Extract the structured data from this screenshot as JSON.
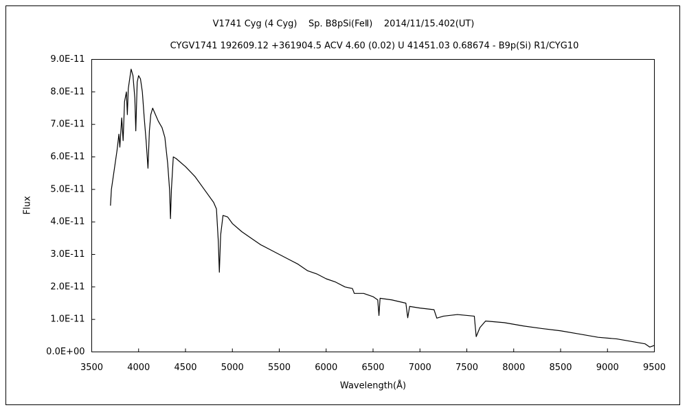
{
  "chart_data": {
    "type": "line",
    "title": "V1741 Cyg (4 Cyg)    Sp. B8pSi(FeⅡ)    2014/11/15.402(UT)",
    "subtitle": "CYGV1741 192609.12 +361904.5 ACV 4.60 (0.02) U 41451.03 0.68674 - B9p(Si) R1/CYG10",
    "x_label": "Wavelength(Å)",
    "y_label": "Flux",
    "color": "#000000",
    "x": [
      3700,
      3710,
      3730,
      3750,
      3770,
      3790,
      3800,
      3820,
      3835,
      3850,
      3870,
      3880,
      3890,
      3900,
      3920,
      3940,
      3960,
      3970,
      3985,
      4000,
      4020,
      4040,
      4060,
      4080,
      4100,
      4115,
      4130,
      4150,
      4180,
      4210,
      4250,
      4280,
      4310,
      4330,
      4340,
      4350,
      4370,
      4400,
      4500,
      4600,
      4700,
      4800,
      4830,
      4850,
      4861,
      4875,
      4900,
      4950,
      5000,
      5100,
      5200,
      5300,
      5400,
      5500,
      5600,
      5700,
      5800,
      5900,
      6000,
      6100,
      6200,
      6280,
      6300,
      6400,
      6500,
      6550,
      6563,
      6575,
      6700,
      6850,
      6870,
      6890,
      7000,
      7150,
      7180,
      7250,
      7400,
      7580,
      7600,
      7640,
      7700,
      7900,
      8100,
      8300,
      8500,
      8700,
      8900,
      9100,
      9300,
      9400,
      9450,
      9500
    ],
    "values": [
      4.5e-11,
      5e-11,
      5.4e-11,
      5.8e-11,
      6.2e-11,
      6.7e-11,
      6.3e-11,
      7.2e-11,
      6.5e-11,
      7.7e-11,
      8e-11,
      7.3e-11,
      8.1e-11,
      8.3e-11,
      8.7e-11,
      8.5e-11,
      7.8e-11,
      6.8e-11,
      8.3e-11,
      8.5e-11,
      8.4e-11,
      8e-11,
      7.2e-11,
      6.5e-11,
      5.65e-11,
      6.8e-11,
      7.3e-11,
      7.5e-11,
      7.3e-11,
      7.1e-11,
      6.9e-11,
      6.6e-11,
      5.8e-11,
      5e-11,
      4.1e-11,
      5e-11,
      6e-11,
      5.95e-11,
      5.7e-11,
      5.4e-11,
      5e-11,
      4.6e-11,
      4.4e-11,
      3.4e-11,
      2.45e-11,
      3.6e-11,
      4.2e-11,
      4.15e-11,
      3.95e-11,
      3.7e-11,
      3.5e-11,
      3.3e-11,
      3.15e-11,
      3e-11,
      2.85e-11,
      2.7e-11,
      2.5e-11,
      2.4e-11,
      2.25e-11,
      2.15e-11,
      2e-11,
      1.95e-11,
      1.8e-11,
      1.8e-11,
      1.7e-11,
      1.6e-11,
      1.12e-11,
      1.65e-11,
      1.6e-11,
      1.5e-11,
      1.05e-11,
      1.4e-11,
      1.35e-11,
      1.3e-11,
      1.04e-11,
      1.1e-11,
      1.15e-11,
      1.1e-11,
      4.7e-12,
      7.5e-12,
      9.5e-12,
      9e-12,
      8e-12,
      7.2e-12,
      6.5e-12,
      5.5e-12,
      4.5e-12,
      4e-12,
      3e-12,
      2.5e-12,
      1.5e-12,
      2e-12
    ],
    "xlim": [
      3500,
      9500
    ],
    "xticks": [
      3500,
      4000,
      4500,
      5000,
      5500,
      6000,
      6500,
      7000,
      7500,
      8000,
      8500,
      9000,
      9500
    ],
    "ylim": [
      0,
      9e-11
    ],
    "yticks": [
      {
        "value": 0,
        "label": "0.0E+00"
      },
      {
        "value": 1e-11,
        "label": "1.0E-11"
      },
      {
        "value": 2e-11,
        "label": "2.0E-11"
      },
      {
        "value": 3e-11,
        "label": "3.0E-11"
      },
      {
        "value": 4e-11,
        "label": "4.0E-11"
      },
      {
        "value": 5e-11,
        "label": "5.0E-11"
      },
      {
        "value": 6e-11,
        "label": "6.0E-11"
      },
      {
        "value": 7e-11,
        "label": "7.0E-11"
      },
      {
        "value": 8e-11,
        "label": "8.0E-11"
      },
      {
        "value": 9e-11,
        "label": "9.0E-11"
      }
    ],
    "grid": false
  }
}
